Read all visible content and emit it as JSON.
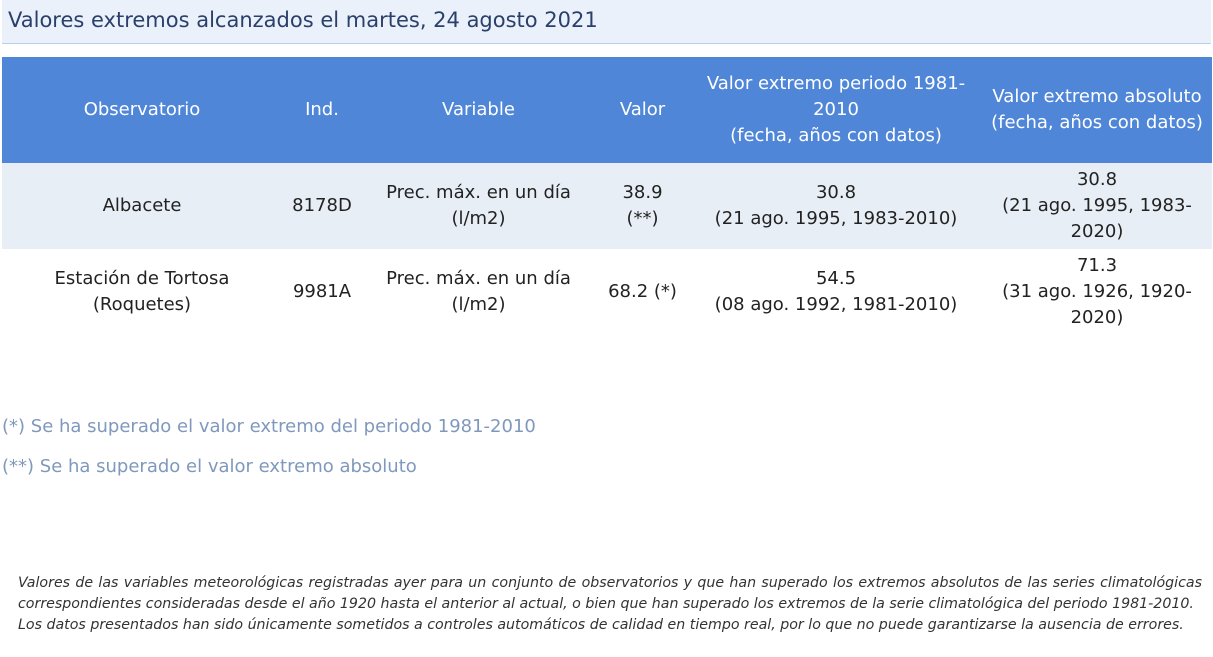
{
  "title": "Valores extremos alcanzados el martes, 24 agosto 2021",
  "table": {
    "headers": [
      "Observatorio",
      "Ind.",
      "Variable",
      "Valor",
      "Valor extremo periodo 1981-2010\n(fecha, años con datos)",
      "Valor extremo absoluto\n(fecha, años con datos)"
    ],
    "rows": [
      {
        "observatorio": "Albacete",
        "ind": "8178D",
        "variable": "Prec. máx. en un día (l/m2)",
        "valor": "38.9 (**)",
        "extremo_periodo": "30.8\n(21 ago. 1995, 1983-2010)",
        "extremo_absoluto": "30.8\n(21 ago. 1995, 1983-2020)"
      },
      {
        "observatorio": "Estación de Tortosa (Roquetes)",
        "ind": "9981A",
        "variable": "Prec. máx. en un día (l/m2)",
        "valor": "68.2 (*)",
        "extremo_periodo": "54.5\n(08 ago. 1992, 1981-2010)",
        "extremo_absoluto": "71.3\n(31 ago. 1926, 1920-2020)"
      }
    ]
  },
  "notes": [
    "(*) Se ha superado el valor extremo del periodo 1981-2010",
    "(**) Se ha superado el valor extremo absoluto"
  ],
  "disclaimer": {
    "line1": "Valores de las variables meteorológicas registradas ayer para un conjunto de observatorios y que han superado los extremos absolutos de las series climatológicas",
    "line2": "correspondientes consideradas desde el año 1920 hasta el anterior al actual, o bien que han superado los extremos de la serie climatológica del periodo 1981-2010.",
    "line3": "Los datos presentados han sido únicamente sometidos a controles automáticos de calidad en tiempo real, por lo que no puede garantizarse la ausencia de errores."
  },
  "colors": {
    "header_bg": "#4f86d8",
    "row_alt_bg": "#e7eef5",
    "title_bg": "#eaf1fb",
    "note_text": "#7f98bd"
  }
}
